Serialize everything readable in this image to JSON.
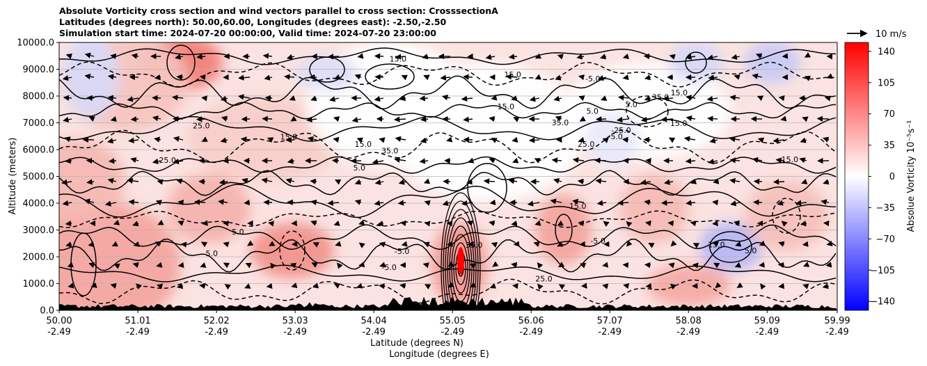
{
  "chart_data": {
    "type": "heatmap",
    "title_lines": [
      "Absolute Vorticity cross section and wind vectors parallel to cross section: CrosssectionA",
      "Latitudes (degrees north): 50.00,60.00, Longitudes (degrees east): -2.50,-2.50",
      "Simulation start time: 2024-07-20 00:00:00, Valid time: 2024-07-20 23:00:00"
    ],
    "ylabel": "Altitude (meters)",
    "xlabel_lat": "Latitude (degrees N)",
    "xlabel_lon": "Longitude (degrees E)",
    "ylim": [
      0,
      10000
    ],
    "xlim": [
      50.0,
      59.99
    ],
    "y_ticks": [
      "0.0",
      "1000.0",
      "2000.0",
      "3000.0",
      "4000.0",
      "5000.0",
      "6000.0",
      "7000.0",
      "8000.0",
      "9000.0",
      "10000.0"
    ],
    "x_ticks": [
      {
        "lat": "50.00",
        "lon": "-2.49"
      },
      {
        "lat": "51.01",
        "lon": "-2.49"
      },
      {
        "lat": "52.02",
        "lon": "-2.49"
      },
      {
        "lat": "53.03",
        "lon": "-2.49"
      },
      {
        "lat": "54.04",
        "lon": "-2.49"
      },
      {
        "lat": "55.05",
        "lon": "-2.49"
      },
      {
        "lat": "56.06",
        "lon": "-2.49"
      },
      {
        "lat": "57.07",
        "lon": "-2.49"
      },
      {
        "lat": "58.08",
        "lon": "-2.49"
      },
      {
        "lat": "59.09",
        "lon": "-2.49"
      },
      {
        "lat": "59.99",
        "lon": "-2.49"
      }
    ],
    "grid": "horizontal",
    "colorbar": {
      "label": "Absolue Vorticity 10⁻⁵s⁻¹",
      "range": [
        -150,
        150
      ],
      "ticks": [
        "140",
        "105",
        "70",
        "35",
        "0",
        "−35",
        "−70",
        "−105",
        "−140"
      ],
      "colormap": "bwr",
      "colors": {
        "low": "#0000ff",
        "mid": "#ffffff",
        "high": "#ff0000"
      }
    },
    "quiver_key": "10 m/s",
    "contour_labels": [
      "35.0",
      "25.0",
      "15.0",
      "5.0",
      "-5.0",
      "-25.0",
      "35.0",
      "15.0",
      "5.0",
      "15.0",
      "25.0",
      "-5.0",
      "15.0",
      "5.0",
      "35.0",
      "15.0",
      "25.0",
      "5.0",
      "15.0",
      "5.0",
      "-5.0",
      "15.0",
      "35.0",
      "-5.0",
      "15.0",
      "25.0",
      "5.0",
      "15.0",
      "-5.0",
      "15.0"
    ]
  }
}
